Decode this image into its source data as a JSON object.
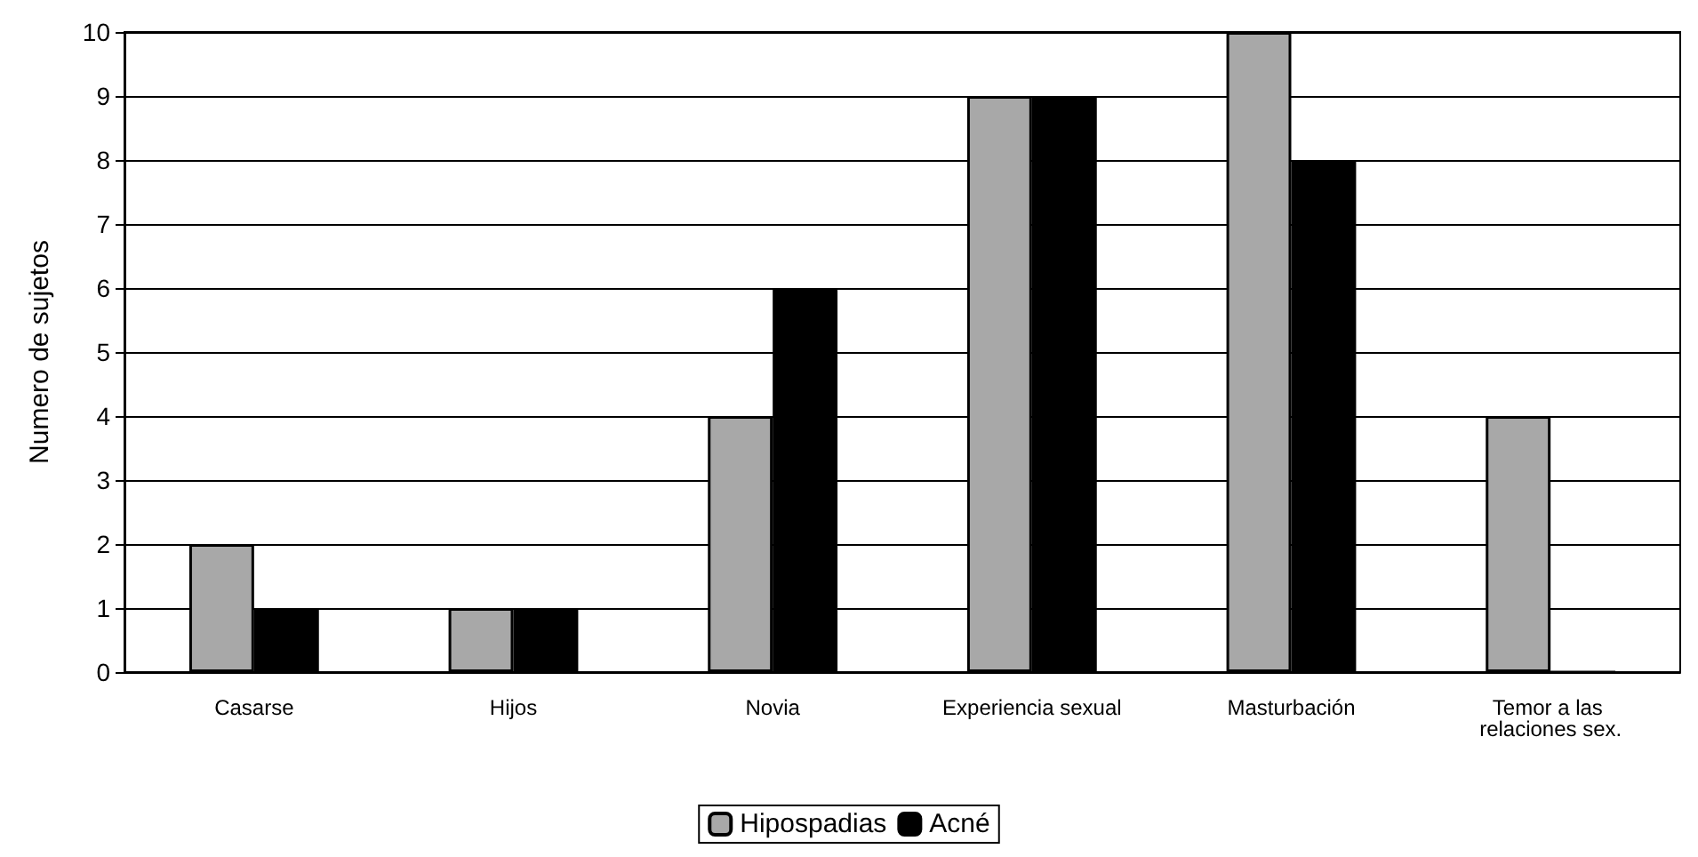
{
  "chart_data": {
    "type": "bar",
    "ylabel": "Numero de sujetos",
    "categories": [
      "Casarse",
      "Hijos",
      "Novia",
      "Experiencia sexual",
      "Masturbación",
      "Temor a las relaciones sex."
    ],
    "series": [
      {
        "name": "Hipospadias",
        "color": "#a8a8a8",
        "values": [
          2,
          1,
          4,
          9,
          10,
          4
        ]
      },
      {
        "name": "Acné",
        "color": "#000000",
        "values": [
          1,
          1,
          6,
          9,
          8,
          0
        ]
      }
    ],
    "ylim": [
      0,
      10
    ],
    "yticks": [
      0,
      1,
      2,
      3,
      4,
      5,
      6,
      7,
      8,
      9,
      10
    ],
    "grid": "y",
    "legend": "bottom"
  }
}
